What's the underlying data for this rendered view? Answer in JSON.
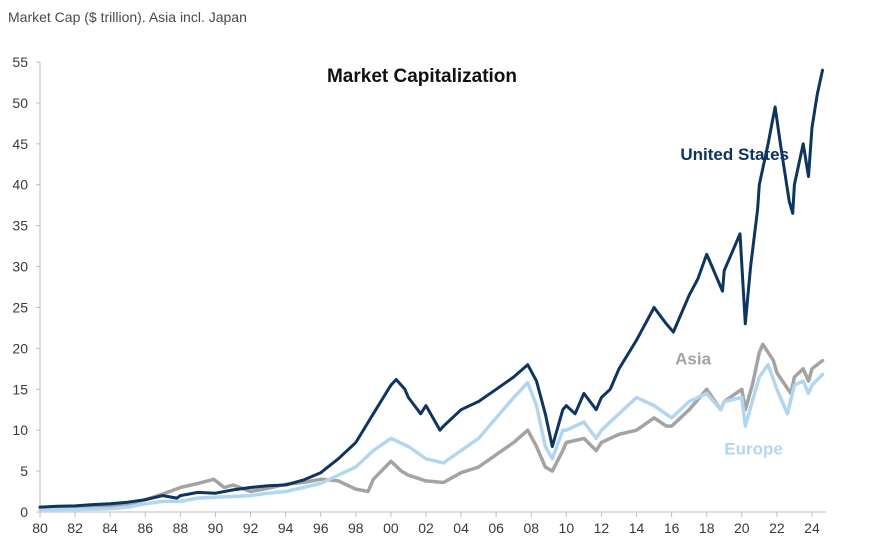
{
  "caption": "Market Cap ($ trillion). Asia incl. Japan",
  "colors": {
    "us": "#0e3460",
    "asia": "#a3a3a3",
    "europe": "#b3d6f0",
    "axis": "#bdbdbd"
  },
  "chart_data": {
    "type": "line",
    "title": "Market Capitalization",
    "xlabel": "",
    "ylabel": "",
    "xlim": [
      1980,
      2024.8
    ],
    "ylim": [
      0,
      55
    ],
    "grid": false,
    "x_ticks": [
      1980,
      1982,
      1984,
      1986,
      1988,
      1990,
      1992,
      1994,
      1996,
      1998,
      2000,
      2002,
      2004,
      2006,
      2008,
      2010,
      2012,
      2014,
      2016,
      2018,
      2020,
      2022,
      2024
    ],
    "x_tick_labels": [
      "80",
      "82",
      "84",
      "86",
      "88",
      "90",
      "92",
      "94",
      "96",
      "98",
      "00",
      "02",
      "04",
      "06",
      "08",
      "10",
      "12",
      "14",
      "16",
      "18",
      "20",
      "22",
      "24"
    ],
    "y_ticks": [
      0,
      5,
      10,
      15,
      20,
      25,
      30,
      35,
      40,
      45,
      50,
      55
    ],
    "series": [
      {
        "name": "United States",
        "color_key": "us",
        "points": [
          [
            1980,
            0.6
          ],
          [
            1981,
            0.7
          ],
          [
            1982,
            0.75
          ],
          [
            1983,
            0.9
          ],
          [
            1984,
            1.0
          ],
          [
            1985,
            1.2
          ],
          [
            1986,
            1.5
          ],
          [
            1987,
            2.0
          ],
          [
            1987.8,
            1.7
          ],
          [
            1988,
            2.0
          ],
          [
            1989,
            2.4
          ],
          [
            1990,
            2.3
          ],
          [
            1991,
            2.7
          ],
          [
            1992,
            3.0
          ],
          [
            1993,
            3.2
          ],
          [
            1994,
            3.3
          ],
          [
            1995,
            3.9
          ],
          [
            1996,
            4.8
          ],
          [
            1997,
            6.5
          ],
          [
            1998,
            8.5
          ],
          [
            1999,
            12.0
          ],
          [
            2000,
            15.5
          ],
          [
            2000.3,
            16.2
          ],
          [
            2000.8,
            15.0
          ],
          [
            2001,
            14.0
          ],
          [
            2001.7,
            12.0
          ],
          [
            2002,
            13.0
          ],
          [
            2002.8,
            10.0
          ],
          [
            2003,
            10.5
          ],
          [
            2004,
            12.5
          ],
          [
            2005,
            13.5
          ],
          [
            2006,
            15.0
          ],
          [
            2007,
            16.5
          ],
          [
            2007.8,
            18.0
          ],
          [
            2008.3,
            16.0
          ],
          [
            2008.8,
            12.0
          ],
          [
            2009.2,
            8.0
          ],
          [
            2009.8,
            12.5
          ],
          [
            2010,
            13.0
          ],
          [
            2010.5,
            12.0
          ],
          [
            2011,
            14.5
          ],
          [
            2011.7,
            12.5
          ],
          [
            2012,
            14.0
          ],
          [
            2012.5,
            15.0
          ],
          [
            2013,
            17.5
          ],
          [
            2014,
            21.0
          ],
          [
            2015,
            25.0
          ],
          [
            2015.7,
            23.0
          ],
          [
            2016.1,
            22.0
          ],
          [
            2016.5,
            24.0
          ],
          [
            2017,
            26.5
          ],
          [
            2017.5,
            28.5
          ],
          [
            2018,
            31.5
          ],
          [
            2018.3,
            30.0
          ],
          [
            2018.9,
            27.0
          ],
          [
            2019,
            29.5
          ],
          [
            2019.5,
            32.0
          ],
          [
            2019.9,
            34.0
          ],
          [
            2020.2,
            23.0
          ],
          [
            2020.5,
            30.0
          ],
          [
            2020.9,
            37.0
          ],
          [
            2021,
            40.0
          ],
          [
            2021.5,
            45.0
          ],
          [
            2021.9,
            49.5
          ],
          [
            2022.2,
            45.0
          ],
          [
            2022.7,
            38.0
          ],
          [
            2022.9,
            36.5
          ],
          [
            2023,
            40.0
          ],
          [
            2023.5,
            45.0
          ],
          [
            2023.8,
            41.0
          ],
          [
            2024,
            47.0
          ],
          [
            2024.3,
            51.0
          ],
          [
            2024.6,
            54.0
          ]
        ]
      },
      {
        "name": "Asia",
        "color_key": "asia",
        "points": [
          [
            1980,
            0.4
          ],
          [
            1982,
            0.5
          ],
          [
            1984,
            0.7
          ],
          [
            1985,
            0.9
          ],
          [
            1986,
            1.5
          ],
          [
            1987,
            2.2
          ],
          [
            1988,
            3.0
          ],
          [
            1989,
            3.5
          ],
          [
            1989.9,
            4.0
          ],
          [
            1990.5,
            3.0
          ],
          [
            1991,
            3.3
          ],
          [
            1992,
            2.5
          ],
          [
            1993,
            2.9
          ],
          [
            1994,
            3.4
          ],
          [
            1995,
            3.6
          ],
          [
            1996,
            4.0
          ],
          [
            1997,
            3.8
          ],
          [
            1997.8,
            3.0
          ],
          [
            1998,
            2.8
          ],
          [
            1998.7,
            2.5
          ],
          [
            1999,
            4.0
          ],
          [
            2000,
            6.2
          ],
          [
            2000.6,
            5.0
          ],
          [
            2001,
            4.5
          ],
          [
            2002,
            3.8
          ],
          [
            2003,
            3.6
          ],
          [
            2004,
            4.8
          ],
          [
            2005,
            5.5
          ],
          [
            2006,
            7.0
          ],
          [
            2007,
            8.5
          ],
          [
            2007.8,
            10.0
          ],
          [
            2008.3,
            8.0
          ],
          [
            2008.8,
            5.5
          ],
          [
            2009.2,
            5.0
          ],
          [
            2009.8,
            7.5
          ],
          [
            2010,
            8.5
          ],
          [
            2011,
            9.0
          ],
          [
            2011.7,
            7.5
          ],
          [
            2012,
            8.5
          ],
          [
            2013,
            9.5
          ],
          [
            2014,
            10.0
          ],
          [
            2015,
            11.5
          ],
          [
            2015.7,
            10.5
          ],
          [
            2016,
            10.5
          ],
          [
            2017,
            12.5
          ],
          [
            2018,
            15.0
          ],
          [
            2018.8,
            12.5
          ],
          [
            2019,
            13.5
          ],
          [
            2020,
            15.0
          ],
          [
            2020.2,
            12.5
          ],
          [
            2020.6,
            15.5
          ],
          [
            2021,
            19.5
          ],
          [
            2021.2,
            20.5
          ],
          [
            2021.8,
            18.5
          ],
          [
            2022,
            17.0
          ],
          [
            2022.8,
            14.5
          ],
          [
            2023,
            16.5
          ],
          [
            2023.5,
            17.5
          ],
          [
            2023.8,
            16.0
          ],
          [
            2024,
            17.5
          ],
          [
            2024.6,
            18.5
          ]
        ]
      },
      {
        "name": "Europe",
        "color_key": "europe",
        "points": [
          [
            1980,
            0.3
          ],
          [
            1982,
            0.3
          ],
          [
            1984,
            0.4
          ],
          [
            1985,
            0.6
          ],
          [
            1986,
            1.0
          ],
          [
            1987,
            1.3
          ],
          [
            1988,
            1.3
          ],
          [
            1989,
            1.7
          ],
          [
            1990,
            1.8
          ],
          [
            1991,
            1.9
          ],
          [
            1992,
            2.0
          ],
          [
            1993,
            2.3
          ],
          [
            1994,
            2.5
          ],
          [
            1995,
            3.0
          ],
          [
            1996,
            3.5
          ],
          [
            1997,
            4.5
          ],
          [
            1998,
            5.5
          ],
          [
            1999,
            7.5
          ],
          [
            2000,
            9.0
          ],
          [
            2001,
            8.0
          ],
          [
            2002,
            6.5
          ],
          [
            2003,
            6.0
          ],
          [
            2004,
            7.5
          ],
          [
            2005,
            9.0
          ],
          [
            2006,
            11.5
          ],
          [
            2007,
            14.0
          ],
          [
            2007.8,
            15.8
          ],
          [
            2008.3,
            13.0
          ],
          [
            2008.8,
            8.0
          ],
          [
            2009.2,
            6.5
          ],
          [
            2009.8,
            10.0
          ],
          [
            2010,
            10.0
          ],
          [
            2011,
            11.0
          ],
          [
            2011.7,
            9.0
          ],
          [
            2012,
            10.0
          ],
          [
            2013,
            12.0
          ],
          [
            2014,
            14.0
          ],
          [
            2015,
            13.0
          ],
          [
            2016,
            11.5
          ],
          [
            2017,
            13.5
          ],
          [
            2018,
            14.5
          ],
          [
            2018.8,
            12.5
          ],
          [
            2019,
            13.5
          ],
          [
            2020,
            14.0
          ],
          [
            2020.2,
            10.5
          ],
          [
            2020.6,
            13.5
          ],
          [
            2021,
            16.5
          ],
          [
            2021.5,
            18.0
          ],
          [
            2022,
            15.0
          ],
          [
            2022.6,
            12.0
          ],
          [
            2023,
            15.5
          ],
          [
            2023.5,
            16.0
          ],
          [
            2023.8,
            14.5
          ],
          [
            2024,
            15.5
          ],
          [
            2024.6,
            16.8
          ]
        ]
      }
    ],
    "annotations": [
      {
        "text": "United States",
        "series": "United States",
        "at": [
          2016.5,
          43
        ]
      },
      {
        "text": "Asia",
        "series": "Asia",
        "at": [
          2016.2,
          18
        ]
      },
      {
        "text": "Europe",
        "series": "Europe",
        "at": [
          2019,
          7
        ]
      }
    ]
  }
}
